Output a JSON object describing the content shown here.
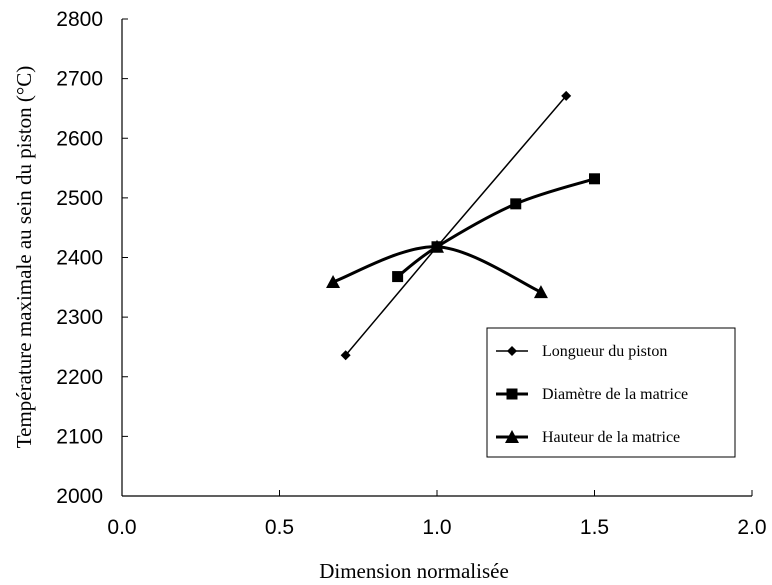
{
  "chart_data": {
    "type": "line",
    "xlabel": "Dimension normalisée",
    "ylabel": "Température maximale au sein du piston (°C)",
    "xlim": [
      0.0,
      2.0
    ],
    "ylim": [
      2000,
      2800
    ],
    "xticks": [
      "0.0",
      "0.5",
      "1.0",
      "1.5",
      "2.0"
    ],
    "yticks": [
      "2000",
      "2100",
      "2200",
      "2300",
      "2400",
      "2500",
      "2600",
      "2700",
      "2800"
    ],
    "grid": false,
    "legend_position": "lower-right",
    "series": [
      {
        "name": "Longueur du piston",
        "marker": "diamond",
        "smooth": false,
        "line_weight": "thin",
        "points": [
          [
            0.71,
            2236
          ],
          [
            1.0,
            2418
          ],
          [
            1.41,
            2671
          ]
        ]
      },
      {
        "name": "Diamètre de la matrice",
        "marker": "square",
        "smooth": true,
        "line_weight": "thick",
        "points": [
          [
            0.875,
            2368
          ],
          [
            1.0,
            2418
          ],
          [
            1.25,
            2490
          ],
          [
            1.5,
            2532
          ]
        ]
      },
      {
        "name": "Hauteur de la matrice",
        "marker": "triangle",
        "smooth": true,
        "line_weight": "thick",
        "points": [
          [
            0.67,
            2359
          ],
          [
            1.0,
            2418
          ],
          [
            1.33,
            2342
          ]
        ]
      }
    ]
  }
}
